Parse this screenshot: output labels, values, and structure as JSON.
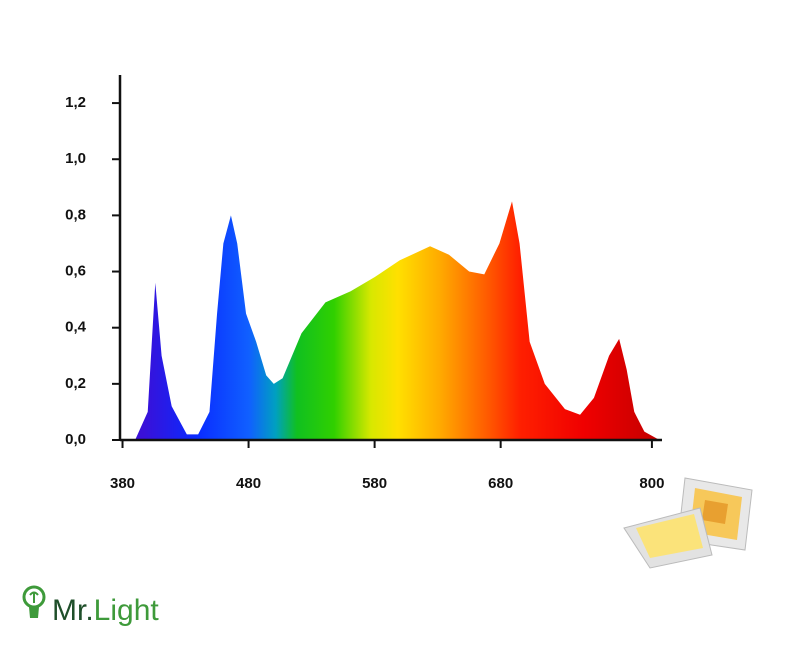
{
  "chart_data": {
    "type": "area",
    "x": [
      390,
      400,
      406,
      411,
      419,
      431,
      440,
      449,
      455,
      460,
      466,
      471,
      478,
      486,
      494,
      500,
      507,
      522,
      541,
      561,
      580,
      600,
      624,
      639,
      655,
      667,
      679,
      689,
      695,
      703,
      715,
      731,
      743,
      754,
      766,
      774,
      780,
      786,
      794,
      806
    ],
    "values": [
      0,
      0.1,
      0.56,
      0.3,
      0.12,
      0.02,
      0.02,
      0.1,
      0.45,
      0.7,
      0.8,
      0.7,
      0.45,
      0.35,
      0.23,
      0.2,
      0.22,
      0.38,
      0.49,
      0.53,
      0.58,
      0.64,
      0.69,
      0.66,
      0.6,
      0.59,
      0.7,
      0.85,
      0.7,
      0.35,
      0.2,
      0.11,
      0.09,
      0.15,
      0.3,
      0.36,
      0.25,
      0.1,
      0.03,
      0
    ],
    "xlim": [
      378,
      808
    ],
    "xticks": [
      380,
      480,
      580,
      680,
      800
    ],
    "ylim": [
      0,
      1.3
    ],
    "yticks": [
      {
        "value": 0,
        "label": "0,0"
      },
      {
        "value": 0.2,
        "label": "0,2"
      },
      {
        "value": 0.4,
        "label": "0,4"
      },
      {
        "value": 0.6,
        "label": "0,6"
      },
      {
        "value": 0.8,
        "label": "0,8"
      },
      {
        "value": 1.0,
        "label": "1,0"
      },
      {
        "value": 1.2,
        "label": "1,2"
      }
    ]
  },
  "logo": {
    "prefix": "Mr.",
    "name": "Light"
  }
}
